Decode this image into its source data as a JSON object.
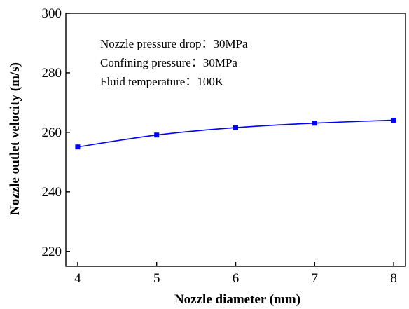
{
  "chart_data": {
    "type": "line",
    "xlabel": "Nozzle diameter (mm)",
    "ylabel": "Nozzle outlet velocity (m/s)",
    "xlim": [
      3.85,
      8.15
    ],
    "ylim": [
      215,
      300
    ],
    "x_ticks": [
      4,
      5,
      6,
      7,
      8
    ],
    "y_ticks": [
      220,
      240,
      260,
      280,
      300
    ],
    "x_tick_labels": [
      "4",
      "5",
      "6",
      "7",
      "8"
    ],
    "y_tick_labels": [
      "220",
      "240",
      "260",
      "280",
      "300"
    ],
    "grid": false,
    "series": [
      {
        "x": [
          4,
          5,
          6,
          7,
          8
        ],
        "values": [
          255.1,
          259.1,
          261.6,
          263.1,
          264.1
        ],
        "color": "#0000ff",
        "marker": "square",
        "smooth": true
      }
    ],
    "annotations": [
      "Nozzle pressure drop：30MPa",
      "Confining pressure：30MPa",
      "Fluid temperature：100K"
    ]
  }
}
